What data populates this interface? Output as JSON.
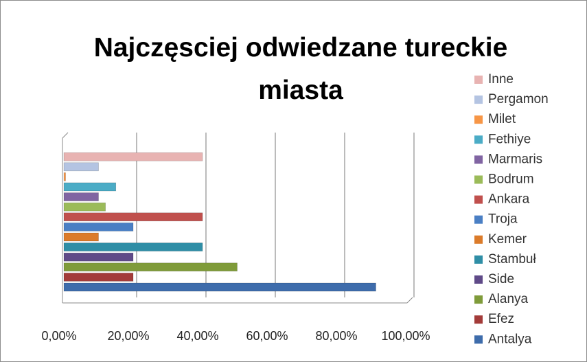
{
  "chart_data": {
    "type": "bar",
    "orientation": "horizontal",
    "title": "Najczęsciej odwiedzane tureckie miasta",
    "series": [
      {
        "name": "Antalya",
        "color": "#3e6cab",
        "values": [
          90
        ]
      },
      {
        "name": "Efez",
        "color": "#a33b39",
        "values": [
          20
        ]
      },
      {
        "name": "Alanya",
        "color": "#7f9b3a",
        "values": [
          50
        ]
      },
      {
        "name": "Side",
        "color": "#5f4a88",
        "values": [
          20
        ]
      },
      {
        "name": "Stambuł",
        "color": "#2f8ea6",
        "values": [
          40
        ]
      },
      {
        "name": "Kemer",
        "color": "#db7b2a",
        "values": [
          10
        ]
      },
      {
        "name": "Troja",
        "color": "#4a7fc4",
        "values": [
          20
        ]
      },
      {
        "name": "Ankara",
        "color": "#c0504d",
        "values": [
          40
        ]
      },
      {
        "name": "Bodrum",
        "color": "#9bbb59",
        "values": [
          12
        ]
      },
      {
        "name": "Marmaris",
        "color": "#8064a2",
        "values": [
          10
        ]
      },
      {
        "name": "Fethiye",
        "color": "#4bacc6",
        "values": [
          15
        ]
      },
      {
        "name": "Milet",
        "color": "#f79646",
        "values": [
          0.5
        ]
      },
      {
        "name": "Pergamon",
        "color": "#b4c4e2",
        "values": [
          10
        ]
      },
      {
        "name": "Inne",
        "color": "#e8b3b2",
        "values": [
          40
        ]
      }
    ],
    "xlim": [
      0,
      100
    ],
    "xticks": [
      {
        "value": 0,
        "label": "0,00%"
      },
      {
        "value": 20,
        "label": "20,00%"
      },
      {
        "value": 40,
        "label": "40,00%"
      },
      {
        "value": 60,
        "label": "60,00%"
      },
      {
        "value": 80,
        "label": "80,00%"
      },
      {
        "value": 100,
        "label": "100,00%"
      }
    ],
    "grid": true,
    "legend": "right"
  }
}
